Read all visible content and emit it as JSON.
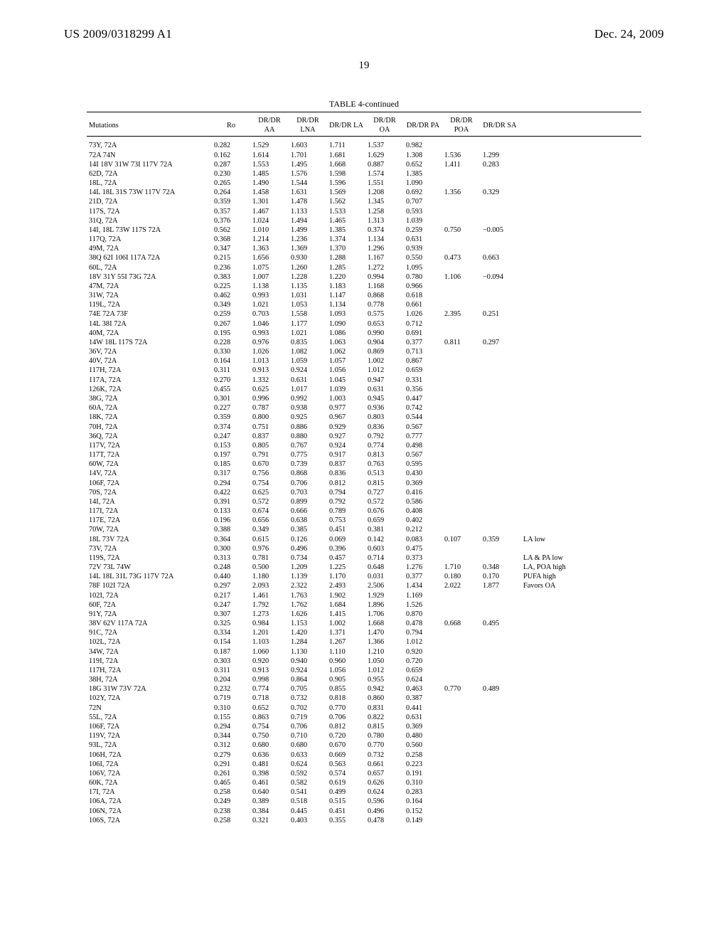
{
  "header": {
    "doc_id": "US 2009/0318299 A1",
    "date": "Dec. 24, 2009",
    "page_number": "19"
  },
  "table": {
    "title": "TABLE 4-continued",
    "columns": [
      "Mutations",
      "Ro",
      "DR/DR AA",
      "DR/DR LNA",
      "DR/DR LA",
      "DR/DR OA",
      "DR/DR PA",
      "DR/DR POA",
      "DR/DR SA",
      ""
    ],
    "rows": [
      [
        "73Y, 72A",
        "0.282",
        "1.529",
        "1.603",
        "1.711",
        "1.537",
        "0.982",
        "",
        "",
        ""
      ],
      [
        "72A 74N",
        "0.162",
        "1.614",
        "1.701",
        "1.681",
        "1.629",
        "1.308",
        "1.536",
        "1.299",
        ""
      ],
      [
        "14I 18V 31W 73I 117V 72A",
        "0.287",
        "1.553",
        "1.495",
        "1.668",
        "0.887",
        "0.652",
        "1.411",
        "0.283",
        ""
      ],
      [
        "62D, 72A",
        "0.230",
        "1.485",
        "1.576",
        "1.598",
        "1.574",
        "1.385",
        "",
        "",
        ""
      ],
      [
        "18L, 72A",
        "0.265",
        "1.490",
        "1.544",
        "1.596",
        "1.551",
        "1.090",
        "",
        "",
        ""
      ],
      [
        "14L 18L 31S 73W 117V 72A",
        "0.264",
        "1.458",
        "1.631",
        "1.569",
        "1.208",
        "0.692",
        "1.356",
        "0.329",
        ""
      ],
      [
        "21D, 72A",
        "0.359",
        "1.301",
        "1.478",
        "1.562",
        "1.345",
        "0.707",
        "",
        "",
        ""
      ],
      [
        "117S, 72A",
        "0.357",
        "1.467",
        "1.133",
        "1.533",
        "1.258",
        "0.593",
        "",
        "",
        ""
      ],
      [
        "31Q, 72A",
        "0.376",
        "1.024",
        "1.494",
        "1.465",
        "1.313",
        "1.039",
        "",
        "",
        ""
      ],
      [
        "14I, 18L 73W 117S 72A",
        "0.562",
        "1.010",
        "1.499",
        "1.385",
        "0.374",
        "0.259",
        "0.750",
        "−0.005",
        ""
      ],
      [
        "117Q, 72A",
        "0.368",
        "1.214",
        "1.236",
        "1.374",
        "1.134",
        "0.631",
        "",
        "",
        ""
      ],
      [
        "49M, 72A",
        "0.347",
        "1.363",
        "1.369",
        "1.370",
        "1.296",
        "0.939",
        "",
        "",
        ""
      ],
      [
        "38Q 62I 106I 117A 72A",
        "0.215",
        "1.656",
        "0.930",
        "1.288",
        "1.167",
        "0.550",
        "0.473",
        "0.663",
        ""
      ],
      [
        "60L, 72A",
        "0.236",
        "1.075",
        "1.260",
        "1.285",
        "1.272",
        "1.095",
        "",
        "",
        ""
      ],
      [
        "18V 31Y 55I 73G 72A",
        "0.383",
        "1.007",
        "1.228",
        "1.220",
        "0.994",
        "0.780",
        "1.106",
        "−0.094",
        ""
      ],
      [
        "47M, 72A",
        "0.225",
        "1.138",
        "1.135",
        "1.183",
        "1.168",
        "0.966",
        "",
        "",
        ""
      ],
      [
        "31W, 72A",
        "0.462",
        "0.993",
        "1.031",
        "1.147",
        "0.868",
        "0.618",
        "",
        "",
        ""
      ],
      [
        "119L, 72A",
        "0.349",
        "1.021",
        "1.053",
        "1.134",
        "0.778",
        "0.661",
        "",
        "",
        ""
      ],
      [
        "74E 72A 73F",
        "0.259",
        "0.703",
        "1.558",
        "1.093",
        "0.575",
        "1.026",
        "2.395",
        "0.251",
        ""
      ],
      [
        "14L 38I 72A",
        "0.267",
        "1.046",
        "1.177",
        "1.090",
        "0.653",
        "0.712",
        "",
        "",
        ""
      ],
      [
        "40M, 72A",
        "0.195",
        "0.993",
        "1.021",
        "1.086",
        "0.990",
        "0.691",
        "",
        "",
        ""
      ],
      [
        "14W 18L 117S 72A",
        "0.228",
        "0.976",
        "0.835",
        "1.063",
        "0.904",
        "0.377",
        "0.811",
        "0.297",
        ""
      ],
      [
        "36V, 72A",
        "0.330",
        "1.026",
        "1.082",
        "1.062",
        "0.869",
        "0.713",
        "",
        "",
        ""
      ],
      [
        "40V, 72A",
        "0.164",
        "1.013",
        "1.059",
        "1.057",
        "1.002",
        "0.867",
        "",
        "",
        ""
      ],
      [
        "117H, 72A",
        "0.311",
        "0.913",
        "0.924",
        "1.056",
        "1.012",
        "0.659",
        "",
        "",
        ""
      ],
      [
        "117A, 72A",
        "0.270",
        "1.332",
        "0.631",
        "1.045",
        "0.947",
        "0.331",
        "",
        "",
        ""
      ],
      [
        "126K, 72A",
        "0.455",
        "0.625",
        "1.017",
        "1.039",
        "0.631",
        "0.356",
        "",
        "",
        ""
      ],
      [
        "38G, 72A",
        "0.301",
        "0.996",
        "0.992",
        "1.003",
        "0.945",
        "0.447",
        "",
        "",
        ""
      ],
      [
        "60A, 72A",
        "0.227",
        "0.787",
        "0.938",
        "0.977",
        "0.936",
        "0.742",
        "",
        "",
        ""
      ],
      [
        "18K, 72A",
        "0.359",
        "0.800",
        "0.925",
        "0.967",
        "0.803",
        "0.544",
        "",
        "",
        ""
      ],
      [
        "70H, 72A",
        "0.374",
        "0.751",
        "0.886",
        "0.929",
        "0.836",
        "0.567",
        "",
        "",
        ""
      ],
      [
        "36Q, 72A",
        "0.247",
        "0.837",
        "0.880",
        "0.927",
        "0.792",
        "0.777",
        "",
        "",
        ""
      ],
      [
        "117V, 72A",
        "0.153",
        "0.805",
        "0.767",
        "0.924",
        "0.774",
        "0.498",
        "",
        "",
        ""
      ],
      [
        "117T, 72A",
        "0.197",
        "0.791",
        "0.775",
        "0.917",
        "0.813",
        "0.567",
        "",
        "",
        ""
      ],
      [
        "60W, 72A",
        "0.185",
        "0.670",
        "0.739",
        "0.837",
        "0.763",
        "0.595",
        "",
        "",
        ""
      ],
      [
        "14V, 72A",
        "0.317",
        "0.756",
        "0.868",
        "0.836",
        "0.513",
        "0.430",
        "",
        "",
        ""
      ],
      [
        "106F, 72A",
        "0.294",
        "0.754",
        "0.706",
        "0.812",
        "0.815",
        "0.369",
        "",
        "",
        ""
      ],
      [
        "70S, 72A",
        "0.422",
        "0.625",
        "0.703",
        "0.794",
        "0.727",
        "0.416",
        "",
        "",
        ""
      ],
      [
        "14I, 72A",
        "0.391",
        "0.572",
        "0.899",
        "0.792",
        "0.572",
        "0.586",
        "",
        "",
        ""
      ],
      [
        "117I, 72A",
        "0.133",
        "0.674",
        "0.666",
        "0.789",
        "0.676",
        "0.408",
        "",
        "",
        ""
      ],
      [
        "117E, 72A",
        "0.196",
        "0.656",
        "0.638",
        "0.753",
        "0.659",
        "0.402",
        "",
        "",
        ""
      ],
      [
        "70W, 72A",
        "0.388",
        "0.349",
        "0.385",
        "0.451",
        "0.381",
        "0.212",
        "",
        "",
        ""
      ],
      [
        "18L 73V 72A",
        "0.364",
        "0.615",
        "0.126",
        "0.069",
        "0.142",
        "0.083",
        "0.107",
        "0.359",
        "LA low"
      ],
      [
        "73V, 72A",
        "0.300",
        "0.976",
        "0.496",
        "0.396",
        "0.603",
        "0.475",
        "",
        "",
        ""
      ],
      [
        "119S, 72A",
        "0.313",
        "0.781",
        "0.734",
        "0.457",
        "0.714",
        "0.373",
        "",
        "",
        "LA & PA low"
      ],
      [
        "72V 73L 74W",
        "0.248",
        "0.500",
        "1.209",
        "1.225",
        "0.648",
        "1.276",
        "1.710",
        "0.348",
        "LA, POA high"
      ],
      [
        "14L 18L 31L 73G 117V 72A",
        "0.440",
        "1.180",
        "1.139",
        "1.170",
        "0.031",
        "0.377",
        "0.180",
        "0.170",
        "PUFA high"
      ],
      [
        "78F 102I 72A",
        "0.297",
        "2.093",
        "2.322",
        "2.493",
        "2.506",
        "1.434",
        "2.022",
        "1.877",
        "Favors OA"
      ],
      [
        "102I, 72A",
        "0.217",
        "1.461",
        "1.763",
        "1.902",
        "1.929",
        "1.169",
        "",
        "",
        ""
      ],
      [
        "60F, 72A",
        "0.247",
        "1.792",
        "1.762",
        "1.684",
        "1.896",
        "1.526",
        "",
        "",
        ""
      ],
      [
        "91Y, 72A",
        "0.307",
        "1.273",
        "1.626",
        "1.415",
        "1.706",
        "0.870",
        "",
        "",
        ""
      ],
      [
        "38V 62V 117A 72A",
        "0.325",
        "0.984",
        "1.153",
        "1.002",
        "1.668",
        "0.478",
        "0.668",
        "0.495",
        ""
      ],
      [
        "91C, 72A",
        "0.334",
        "1.201",
        "1.420",
        "1.371",
        "1.470",
        "0.794",
        "",
        "",
        ""
      ],
      [
        "102L, 72A",
        "0.154",
        "1.103",
        "1.284",
        "1.267",
        "1.366",
        "1.012",
        "",
        "",
        ""
      ],
      [
        "34W, 72A",
        "0.187",
        "1.060",
        "1.130",
        "1.110",
        "1.210",
        "0.920",
        "",
        "",
        ""
      ],
      [
        "119I, 72A",
        "0.303",
        "0.920",
        "0.940",
        "0.960",
        "1.050",
        "0.720",
        "",
        "",
        ""
      ],
      [
        "117H, 72A",
        "0.311",
        "0.913",
        "0.924",
        "1.056",
        "1.012",
        "0.659",
        "",
        "",
        ""
      ],
      [
        "38H, 72A",
        "0.204",
        "0.998",
        "0.864",
        "0.905",
        "0.955",
        "0.624",
        "",
        "",
        ""
      ],
      [
        "18G 31W 73V 72A",
        "0.232",
        "0.774",
        "0.705",
        "0.855",
        "0.942",
        "0.463",
        "0.770",
        "0.489",
        ""
      ],
      [
        "102Y, 72A",
        "0.719",
        "0.718",
        "0.732",
        "0.818",
        "0.860",
        "0.387",
        "",
        "",
        ""
      ],
      [
        "72N",
        "0.310",
        "0.652",
        "0.702",
        "0.770",
        "0.831",
        "0.441",
        "",
        "",
        ""
      ],
      [
        "55L, 72A",
        "0.155",
        "0.863",
        "0.719",
        "0.706",
        "0.822",
        "0.631",
        "",
        "",
        ""
      ],
      [
        "106F, 72A",
        "0.294",
        "0.754",
        "0.706",
        "0.812",
        "0.815",
        "0.369",
        "",
        "",
        ""
      ],
      [
        "119V, 72A",
        "0.344",
        "0.750",
        "0.710",
        "0.720",
        "0.780",
        "0.480",
        "",
        "",
        ""
      ],
      [
        "93L, 72A",
        "0.312",
        "0.680",
        "0.680",
        "0.670",
        "0.770",
        "0.560",
        "",
        "",
        ""
      ],
      [
        "106H, 72A",
        "0.279",
        "0.636",
        "0.633",
        "0.669",
        "0.732",
        "0.258",
        "",
        "",
        ""
      ],
      [
        "106I, 72A",
        "0.291",
        "0.481",
        "0.624",
        "0.563",
        "0.661",
        "0.223",
        "",
        "",
        ""
      ],
      [
        "106V, 72A",
        "0.261",
        "0.398",
        "0.592",
        "0.574",
        "0.657",
        "0.191",
        "",
        "",
        ""
      ],
      [
        "60K, 72A",
        "0.465",
        "0.461",
        "0.582",
        "0.619",
        "0.626",
        "0.310",
        "",
        "",
        ""
      ],
      [
        "17I, 72A",
        "0.258",
        "0.640",
        "0.541",
        "0.499",
        "0.624",
        "0.283",
        "",
        "",
        ""
      ],
      [
        "106A, 72A",
        "0.249",
        "0.389",
        "0.518",
        "0.515",
        "0.596",
        "0.164",
        "",
        "",
        ""
      ],
      [
        "106N, 72A",
        "0.238",
        "0.384",
        "0.445",
        "0.451",
        "0.496",
        "0.152",
        "",
        "",
        ""
      ],
      [
        "106S, 72A",
        "0.258",
        "0.321",
        "0.403",
        "0.355",
        "0.478",
        "0.149",
        "",
        "",
        ""
      ]
    ]
  }
}
